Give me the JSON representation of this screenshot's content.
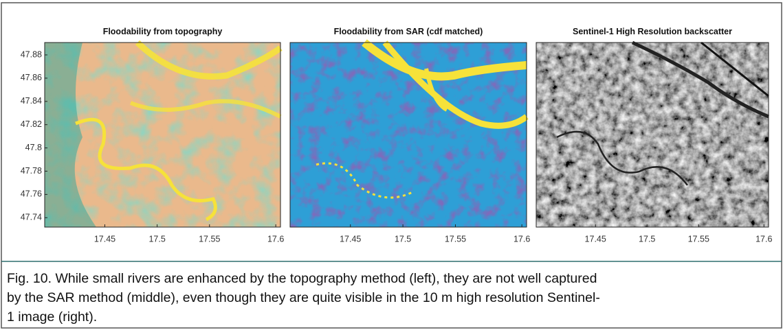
{
  "figure": {
    "panels": [
      {
        "title": "Floodability from topography",
        "yticks": [
          47.88,
          47.86,
          47.84,
          47.82,
          47.8,
          47.78,
          47.76,
          47.74
        ],
        "xticks": [
          17.45,
          17.5,
          17.55,
          17.6
        ]
      },
      {
        "title": "Floodability from SAR (cdf matched)",
        "xticks": [
          17.45,
          17.5,
          17.55,
          17.6
        ]
      },
      {
        "title": "Sentinel-1 High Resolution backscatter",
        "xticks": [
          17.45,
          17.5,
          17.55,
          17.6
        ]
      }
    ],
    "caption": {
      "lines": [
        "Fig. 10. While small rivers are enhanced by the topography method (left), they are not well captured",
        "by the SAR method (middle), even though they are quite visible in the 10 m high resolution Sentinel-",
        "1 image (right)."
      ]
    }
  }
}
